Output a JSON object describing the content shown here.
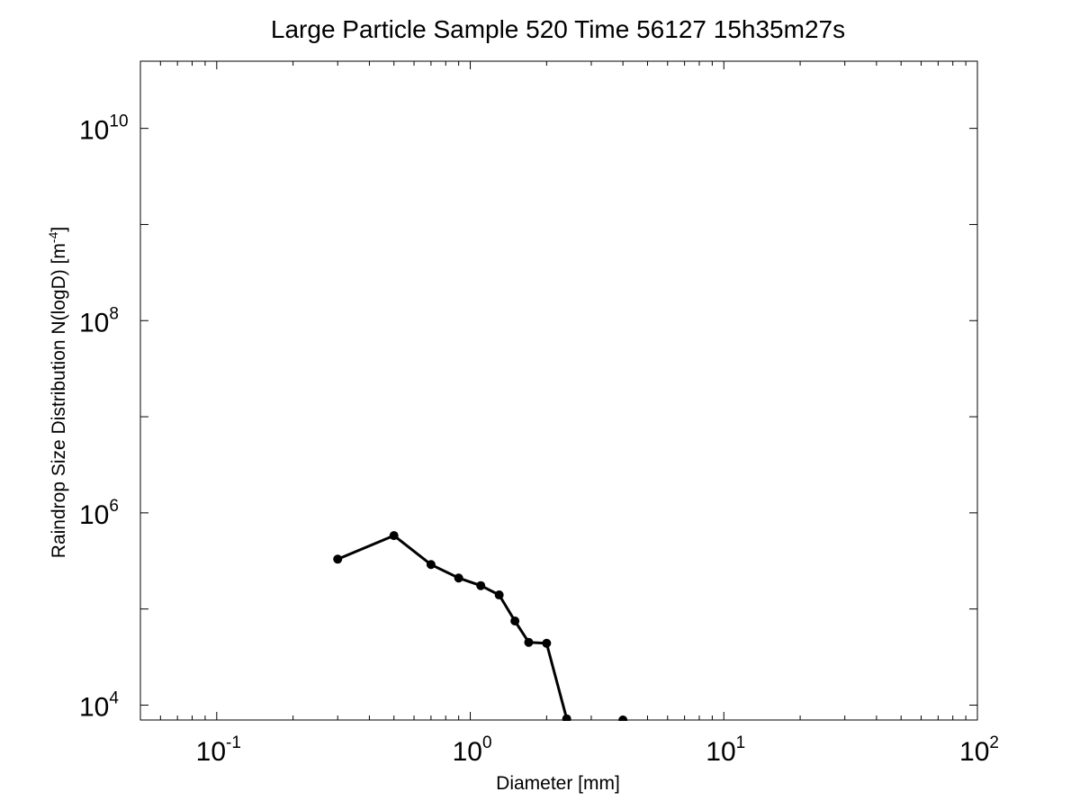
{
  "chart_data": {
    "type": "line",
    "title": "Large Particle Sample 520 Time 56127 15h35m27s",
    "xlabel": "Diameter [mm]",
    "ylabel": {
      "text": "Raindrop Size Distribution N(logD) [m",
      "sup": "-4",
      "suffix": "]"
    },
    "xscale": "log",
    "yscale": "log",
    "xlim": [
      0.05,
      100
    ],
    "ylim": [
      7000,
      50000000000
    ],
    "x_ticks": [
      {
        "value": 0.1,
        "base": "10",
        "exp": "-1"
      },
      {
        "value": 1,
        "base": "10",
        "exp": "0"
      },
      {
        "value": 10,
        "base": "10",
        "exp": "1"
      },
      {
        "value": 100,
        "base": "10",
        "exp": "2"
      }
    ],
    "y_ticks": [
      {
        "value": 10000,
        "base": "10",
        "exp": "4"
      },
      {
        "value": 1000000,
        "base": "10",
        "exp": "6"
      },
      {
        "value": 100000000,
        "base": "10",
        "exp": "8"
      },
      {
        "value": 10000000000,
        "base": "10",
        "exp": "10"
      }
    ],
    "grid": false,
    "color": "#000000",
    "series": [
      {
        "x": [
          0.3,
          0.5,
          0.7,
          0.9,
          1.1,
          1.3,
          1.5,
          1.7,
          2.0,
          2.4
        ],
        "y": [
          330000,
          580000,
          290000,
          210000,
          175000,
          140000,
          75000,
          45000,
          44000,
          7200
        ]
      }
    ],
    "isolated_points": [
      {
        "x": 4.0,
        "y": 7000
      }
    ]
  }
}
